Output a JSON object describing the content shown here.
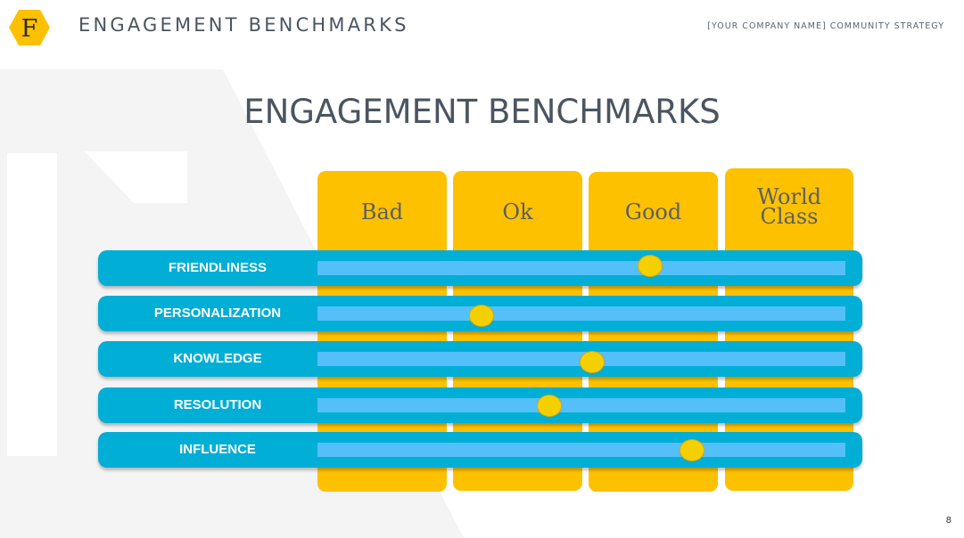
{
  "header": {
    "logo_letter": "F",
    "title": "ENGAGEMENT BENCHMARKS",
    "subtitle": "[YOUR COMPANY NAME] COMMUNITY STRATEGY"
  },
  "slide": {
    "title": "ENGAGEMENT BENCHMARKS",
    "page_number": "8"
  },
  "scale": {
    "levels": [
      "Bad",
      "Ok",
      "Good",
      "World Class"
    ]
  },
  "metrics": [
    {
      "label": "FRIENDLINESS",
      "score": 0.63
    },
    {
      "label": "PERSONALIZATION",
      "score": 0.31
    },
    {
      "label": "KNOWLEDGE",
      "score": 0.52
    },
    {
      "label": "RESOLUTION",
      "score": 0.44
    },
    {
      "label": "INFLUENCE",
      "score": 0.71
    }
  ],
  "colors": {
    "column": "#fdc100",
    "row": "#00aed6",
    "track": "#54bff9",
    "marker": "#f5d000",
    "title": "#4a5560"
  }
}
